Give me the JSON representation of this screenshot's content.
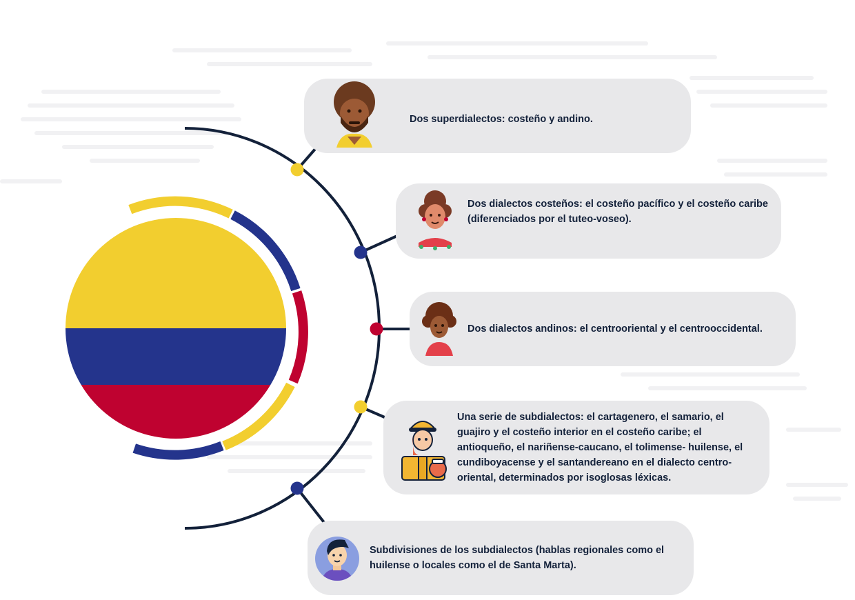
{
  "colors": {
    "yellow": "#f2ce2f",
    "blue": "#24348c",
    "red": "#bf0230",
    "line": "#13213a",
    "card": "#e8e8ea"
  },
  "items": [
    {
      "text": "Dos superdialectos: costeño y andino.",
      "icon": "man-with-beard-avatar-icon",
      "node": "yellow"
    },
    {
      "text": "Dos dialectos costeños: el costeño pacífico y el costeño caribe (diferenciados por el tuteo-voseo).",
      "icon": "woman-with-curly-hair-avatar-icon",
      "node": "blue"
    },
    {
      "text": "Dos dialectos andinos: el centrooriental y el centrooccidental.",
      "icon": "curly-hair-person-avatar-icon",
      "node": "red"
    },
    {
      "text": "Una serie de subdialectos: el cartagenero, el samario, el guajiro y el costeño interior en el costeño caribe; el antioqueño, el nariñense-caucano, el tolimense- huilense, el cundiboyacense y el santandereano en el dialecto centro-oriental, determinados por isoglosas léxicas.",
      "icon": "vendor-woman-avatar-icon",
      "node": "yellow"
    },
    {
      "text": "Subdivisiones de los subdialectos (hablas regionales como el huilense o locales como el de Santa Marta).",
      "icon": "young-man-avatar-icon",
      "node": "blue"
    }
  ]
}
